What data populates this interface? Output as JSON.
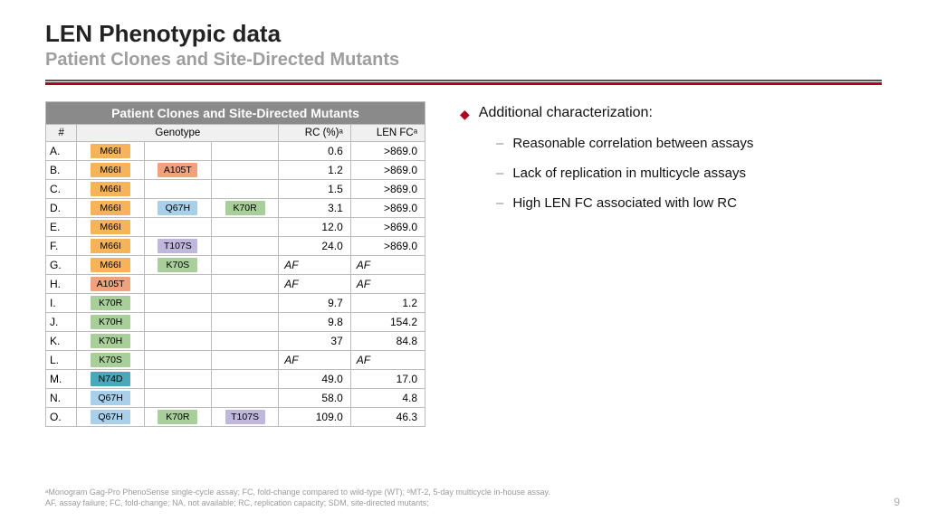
{
  "title": "LEN Phenotypic data",
  "subtitle": "Patient Clones and Site-Directed Mutants",
  "table": {
    "banner": "Patient Clones and Site-Directed Mutants",
    "cols": {
      "num": "#",
      "geno": "Genotype",
      "rc": "RC (%)ᵃ",
      "fc": "LEN FCᵃ"
    },
    "palette": {
      "M66I": "#f6b45a",
      "A105T": "#f2a27a",
      "Q67H": "#a9d0eb",
      "K70R": "#a8cf9a",
      "K70H": "#a8cf9a",
      "K70S": "#a8cf9a",
      "T107S": "#bfb7dc",
      "N74D": "#4aa9b8"
    },
    "rows": [
      {
        "n": "A.",
        "g": [
          "M66I"
        ],
        "rc": "0.6",
        "fc": ">869.0"
      },
      {
        "n": "B.",
        "g": [
          "M66I",
          "A105T"
        ],
        "rc": "1.2",
        "fc": ">869.0"
      },
      {
        "n": "C.",
        "g": [
          "M66I"
        ],
        "rc": "1.5",
        "fc": ">869.0"
      },
      {
        "n": "D.",
        "g": [
          "M66I",
          "Q67H",
          "K70R"
        ],
        "rc": "3.1",
        "fc": ">869.0"
      },
      {
        "n": "E.",
        "g": [
          "M66I"
        ],
        "rc": "12.0",
        "fc": ">869.0"
      },
      {
        "n": "F.",
        "g": [
          "M66I",
          "T107S"
        ],
        "rc": "24.0",
        "fc": ">869.0"
      },
      {
        "n": "G.",
        "g": [
          "M66I",
          "K70S"
        ],
        "rc": "AF",
        "fc": "AF",
        "af": true
      },
      {
        "n": "H.",
        "g": [
          "A105T"
        ],
        "rc": "AF",
        "fc": "AF",
        "af": true
      },
      {
        "n": "I.",
        "g": [
          "K70R"
        ],
        "rc": "9.7",
        "fc": "1.2"
      },
      {
        "n": "J.",
        "g": [
          "K70H"
        ],
        "rc": "9.8",
        "fc": "154.2"
      },
      {
        "n": "K.",
        "g": [
          "K70H"
        ],
        "rc": "37",
        "fc": "84.8"
      },
      {
        "n": "L.",
        "g": [
          "K70S"
        ],
        "rc": "AF",
        "fc": "AF",
        "af": true
      },
      {
        "n": "M.",
        "g": [
          "N74D"
        ],
        "rc": "49.0",
        "fc": "17.0"
      },
      {
        "n": "N.",
        "g": [
          "Q67H"
        ],
        "rc": "58.0",
        "fc": "4.8"
      },
      {
        "n": "O.",
        "g": [
          "Q67H",
          "K70R",
          "T107S"
        ],
        "rc": "109.0",
        "fc": "46.3"
      }
    ]
  },
  "bullets": {
    "main": "Additional characterization:",
    "subs": [
      "Reasonable correlation between assays",
      "Lack of replication in multicycle assays",
      "High LEN FC associated with low RC"
    ]
  },
  "footnote1": "ᵃMonogram Gag-Pro PhenoSense single-cycle assay; FC, fold-change compared to wild-type (WT); ᵇMT-2, 5-day multicycle in-house assay.",
  "footnote2": "AF, assay failure; FC, fold-change; NA, not available; RC, replication capacity; SDM, site-directed mutants;",
  "page": "9"
}
